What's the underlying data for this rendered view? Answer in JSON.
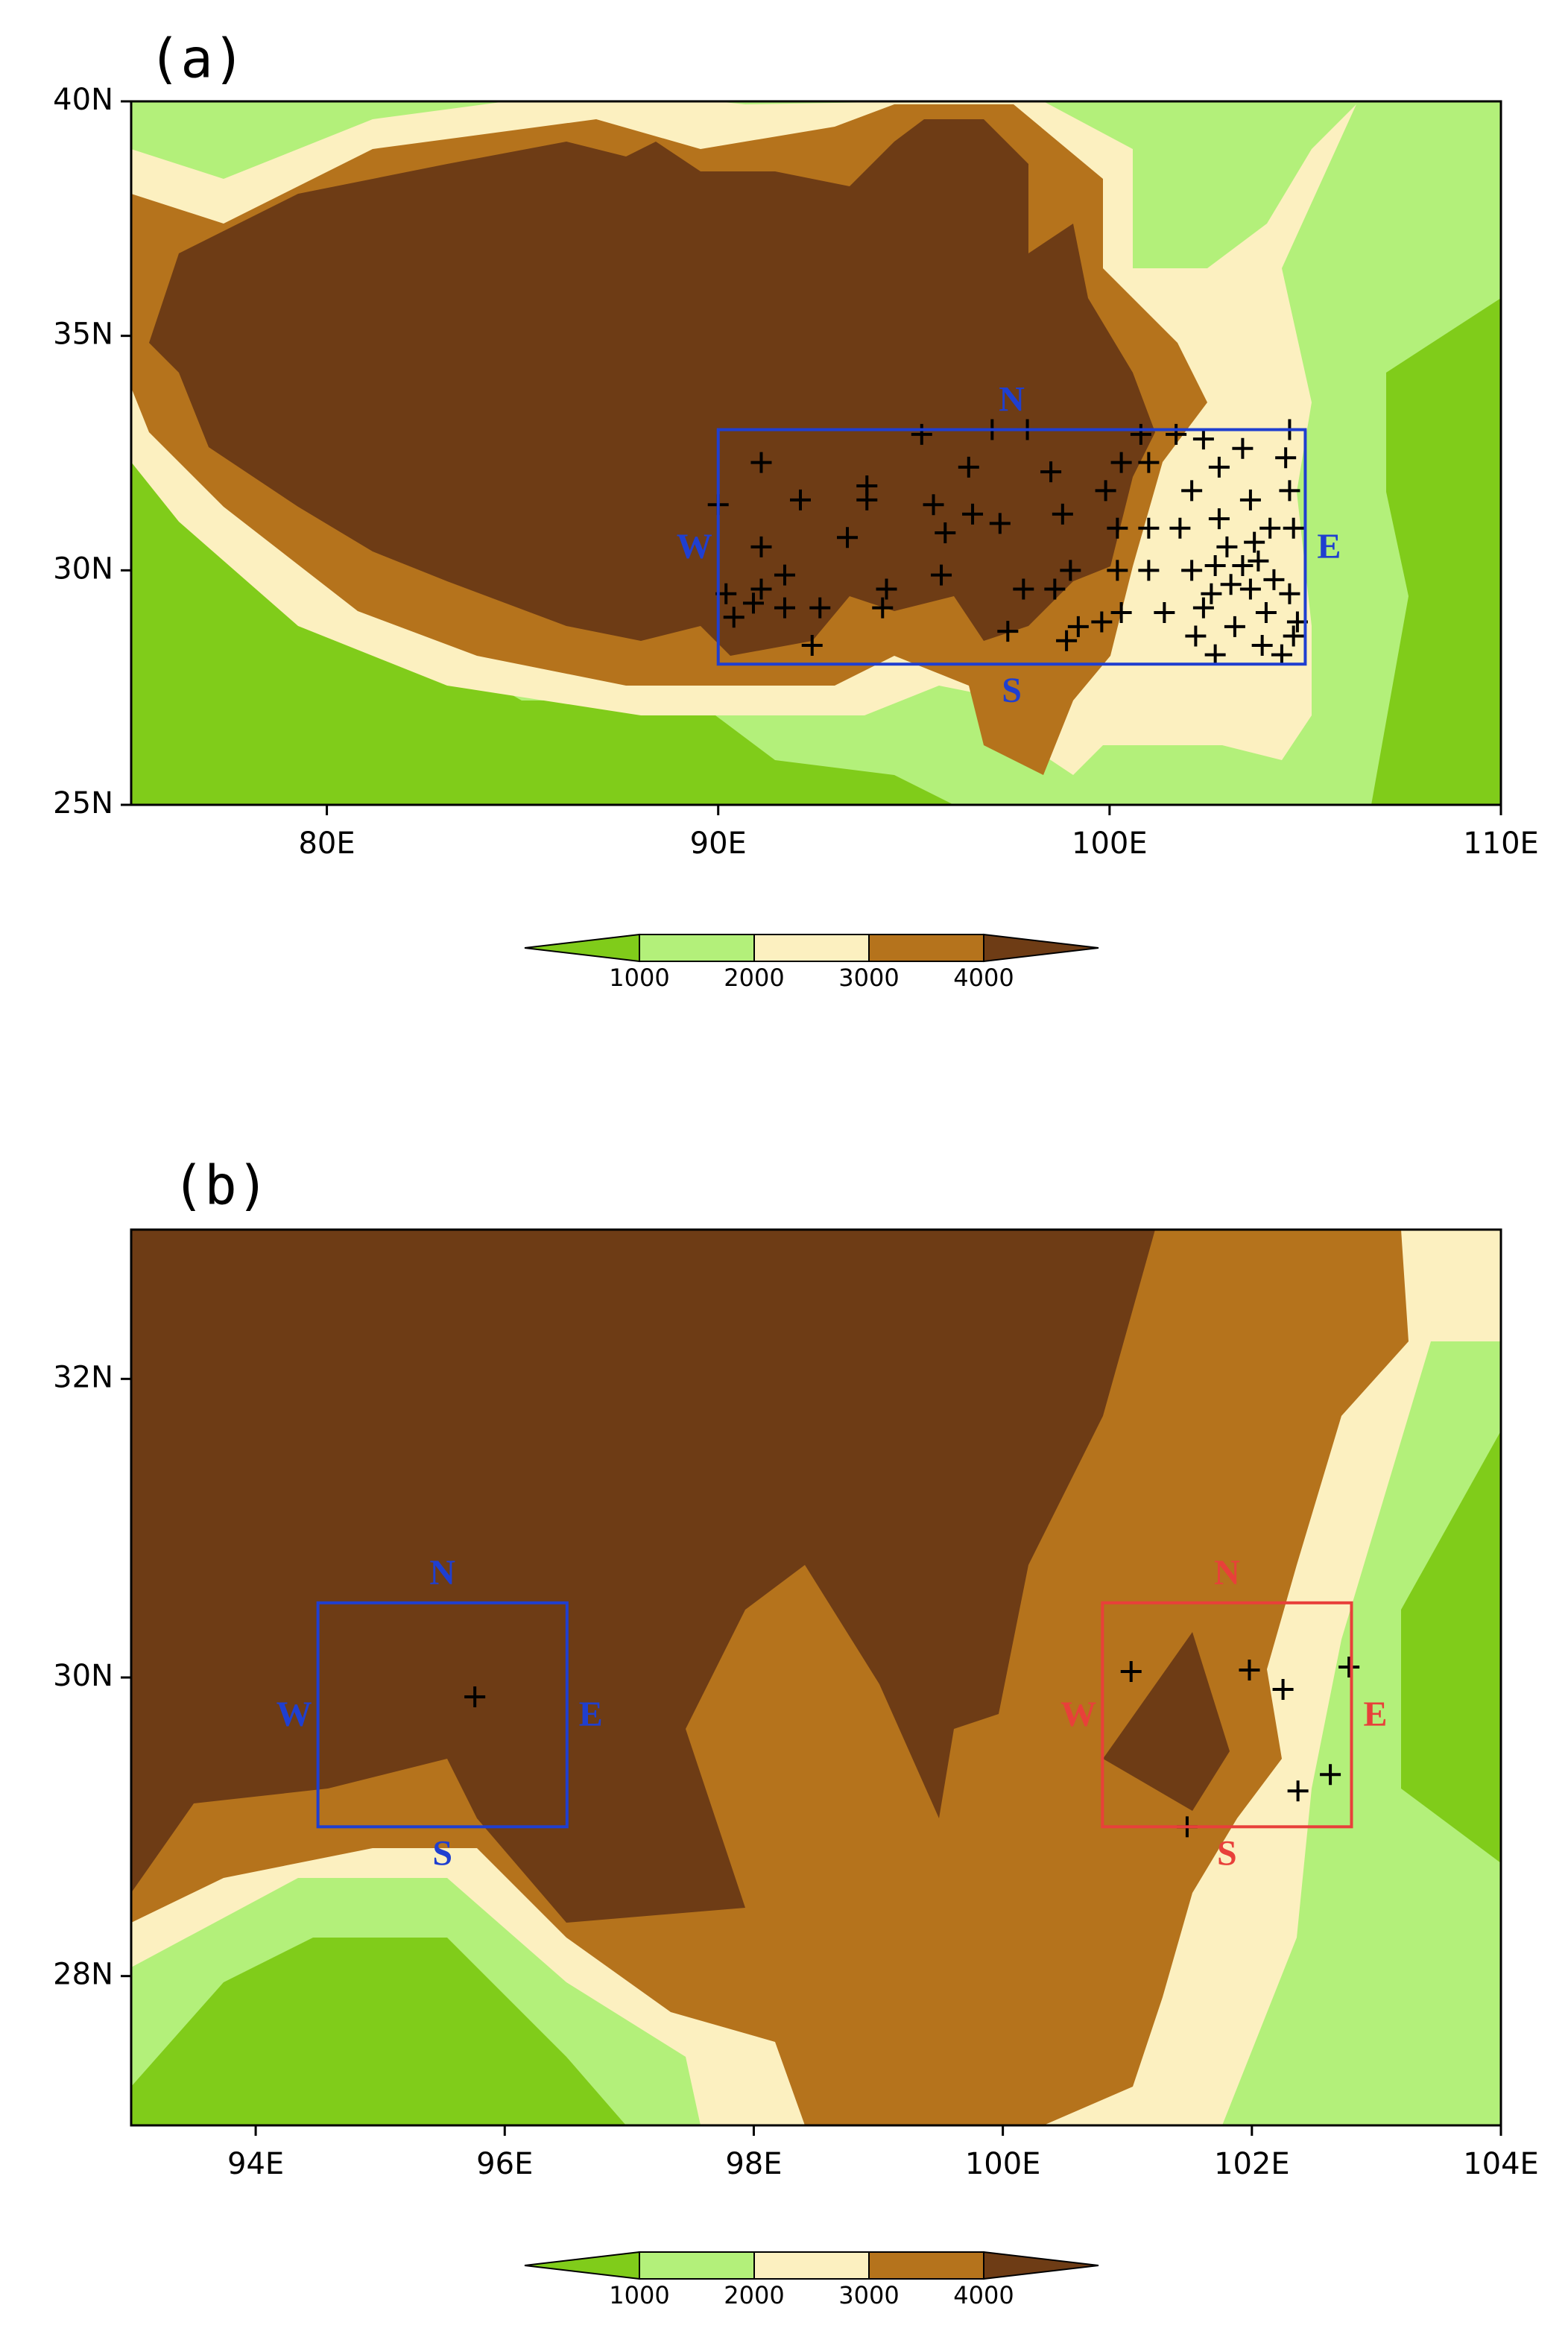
{
  "panels": [
    {
      "label": "(a)",
      "xlim": [
        75,
        110
      ],
      "ylim": [
        25,
        40
      ],
      "xticks": [
        {
          "value": 80,
          "label": "80E"
        },
        {
          "value": 90,
          "label": "90E"
        },
        {
          "value": 100,
          "label": "100E"
        },
        {
          "value": 110,
          "label": "110E"
        }
      ],
      "yticks": [
        {
          "value": 25,
          "label": "25N"
        },
        {
          "value": 30,
          "label": "30N"
        },
        {
          "value": 35,
          "label": "35N"
        },
        {
          "value": 40,
          "label": "40N"
        }
      ],
      "boxes": [
        {
          "lon": [
            90,
            105
          ],
          "lat": [
            28,
            33
          ],
          "color": "#1f3fd0",
          "labels": [
            "N",
            "S",
            "W",
            "E"
          ]
        }
      ],
      "stations": {
        "lon": [
          90.0,
          91.1,
          92.1,
          91.1,
          90.2,
          90.4,
          90.9,
          91.1,
          91.7,
          91.7,
          92.6,
          92.4,
          93.3,
          93.8,
          93.8,
          94.3,
          94.2,
          95.2,
          95.5,
          95.7,
          95.8,
          96.4,
          96.5,
          97.0,
          97.2,
          97.4,
          97.9,
          97.8,
          98.5,
          98.8,
          98.6,
          99.0,
          98.9,
          99.2,
          99.8,
          99.9,
          100.2,
          100.2,
          100.3,
          100.3,
          100.8,
          101.0,
          101.0,
          101.0,
          101.4,
          101.7,
          102.1,
          101.8,
          102.1,
          102.2,
          102.4,
          102.4,
          102.8,
          102.8,
          102.7,
          102.7,
          102.6,
          103.1,
          103.2,
          103.4,
          103.6,
          103.7,
          103.8,
          103.6,
          103.9,
          104.0,
          104.1,
          104.2,
          104.6,
          104.5,
          104.6,
          104.7,
          104.6,
          104.7,
          104.4,
          104.8,
          103.4,
          103.0
        ],
        "lat": [
          31.4,
          32.3,
          31.5,
          30.5,
          29.5,
          29.0,
          29.3,
          29.6,
          29.9,
          29.2,
          29.2,
          28.4,
          30.7,
          31.8,
          31.5,
          29.6,
          29.2,
          32.9,
          31.4,
          29.9,
          30.8,
          32.2,
          31.2,
          33.0,
          31.0,
          28.7,
          33.0,
          29.6,
          32.1,
          31.2,
          29.6,
          30.0,
          28.5,
          28.8,
          28.9,
          31.7,
          30.9,
          30.0,
          29.1,
          32.3,
          32.9,
          32.3,
          30.9,
          30.0,
          29.1,
          32.9,
          31.7,
          30.9,
          30.0,
          28.6,
          29.2,
          32.8,
          32.2,
          31.1,
          30.1,
          28.2,
          29.5,
          29.7,
          28.8,
          32.6,
          31.5,
          30.6,
          30.2,
          29.6,
          28.4,
          29.1,
          30.9,
          29.8,
          33.0,
          32.4,
          31.7,
          30.9,
          29.5,
          28.6,
          28.2,
          28.9,
          30.1,
          30.5
        ]
      }
    },
    {
      "label": "(b)",
      "xlim": [
        93,
        104
      ],
      "ylim": [
        27,
        33
      ],
      "xticks": [
        {
          "value": 94,
          "label": "94E"
        },
        {
          "value": 96,
          "label": "96E"
        },
        {
          "value": 98,
          "label": "98E"
        },
        {
          "value": 100,
          "label": "100E"
        },
        {
          "value": 102,
          "label": "102E"
        },
        {
          "value": 104,
          "label": "104E"
        }
      ],
      "yticks": [
        {
          "value": 28,
          "label": "28N"
        },
        {
          "value": 30,
          "label": "30N"
        },
        {
          "value": 32,
          "label": "32N"
        }
      ],
      "boxes": [
        {
          "lon": [
            94.5,
            96.5
          ],
          "lat": [
            29,
            30.5
          ],
          "color": "#1f3fd0",
          "labels": [
            "N",
            "S",
            "W",
            "E"
          ]
        },
        {
          "lon": [
            100.8,
            102.8
          ],
          "lat": [
            29,
            30.5
          ],
          "color": "#e8403a",
          "labels": [
            "N",
            "S",
            "W",
            "E"
          ]
        }
      ],
      "stations": {
        "lon": [
          95.76,
          101.03,
          101.98,
          102.25,
          102.78,
          102.37,
          102.63,
          101.48
        ],
        "lat": [
          29.87,
          30.04,
          30.05,
          29.92,
          30.07,
          29.24,
          29.35,
          29.0
        ]
      }
    }
  ],
  "colorbar": {
    "levels": [
      1000,
      2000,
      3000,
      4000
    ],
    "colors": [
      "#80cc1a",
      "#b3f07a",
      "#fcf0c0",
      "#b5731c",
      "#6e3c15"
    ]
  }
}
